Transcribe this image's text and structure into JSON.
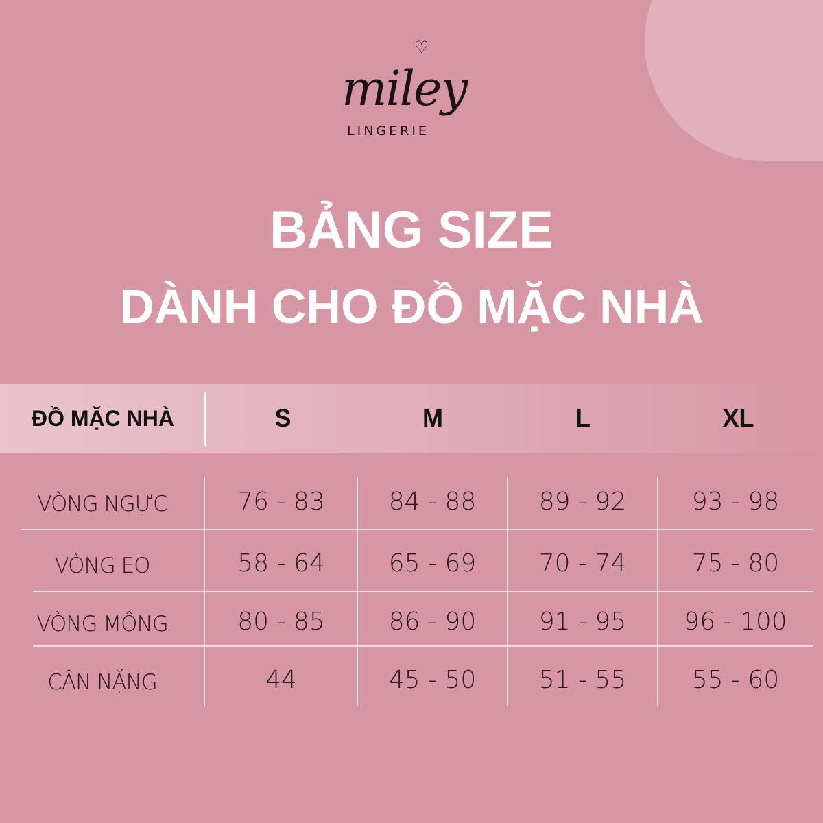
{
  "brand": {
    "name": "miley",
    "tagline": "LINGERIE"
  },
  "title": {
    "line1": "BẢNG SIZE",
    "line2": "DÀNH CHO ĐỒ MẶC NHÀ"
  },
  "colors": {
    "background": "#d796a3",
    "circle": "#e2b0bb",
    "header_band_start": "#e9c4cd",
    "header_band_end": "#d897a5"
  },
  "table": {
    "header": [
      "ĐỒ MẶC NHÀ",
      "S",
      "M",
      "L",
      "XL"
    ],
    "rows": [
      {
        "label": "VÒNG NGỰC",
        "values": [
          "76 - 83",
          "84 - 88",
          "89 - 92",
          "93 - 98"
        ]
      },
      {
        "label": "VÒNG EO",
        "values": [
          "58 - 64",
          "65 - 69",
          "70 - 74",
          "75 - 80"
        ]
      },
      {
        "label": "VÒNG MÔNG",
        "values": [
          "80 - 85",
          "86 - 90",
          "91 - 95",
          "96 - 100"
        ]
      },
      {
        "label": "CÂN NẶNG",
        "values": [
          "44",
          "45 - 50",
          "51 - 55",
          "55 - 60"
        ]
      }
    ]
  }
}
